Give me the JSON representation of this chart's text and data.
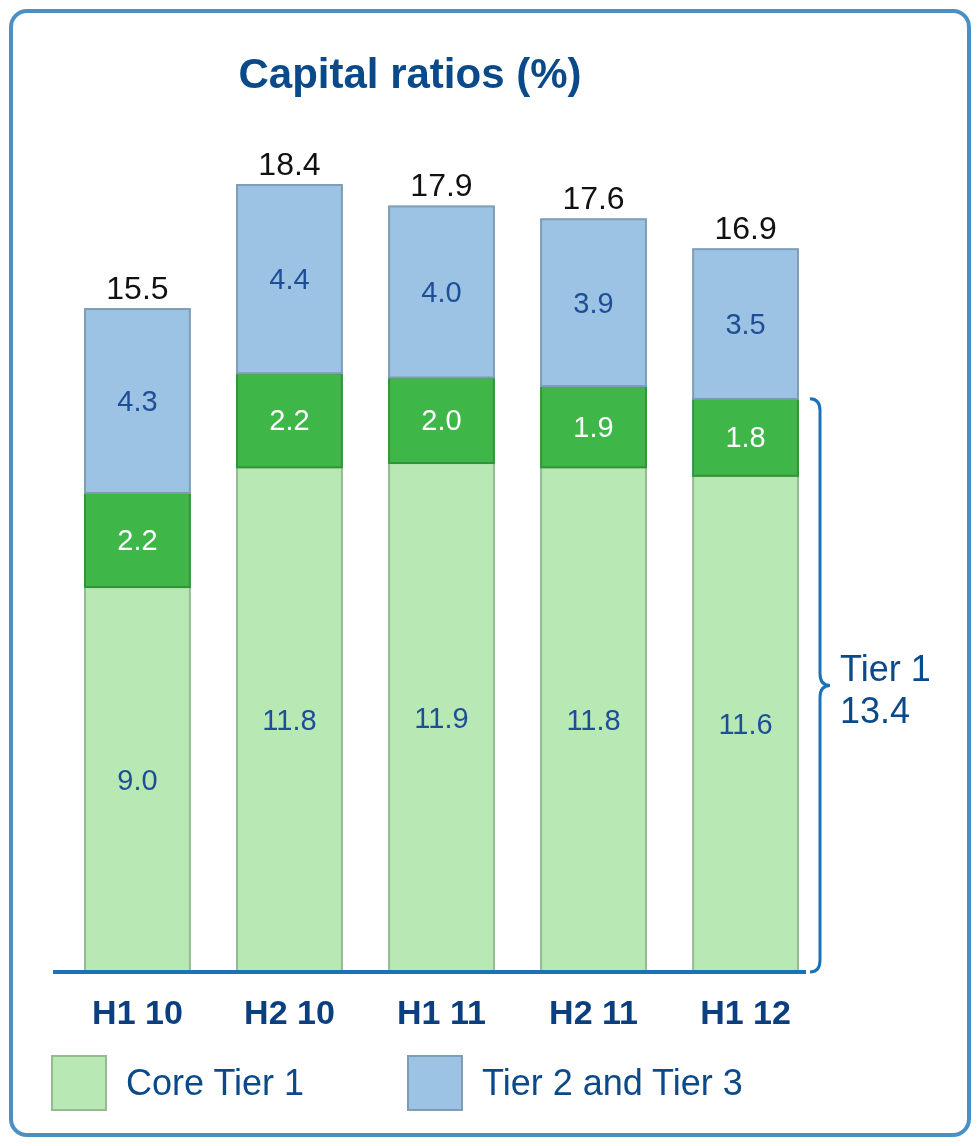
{
  "chart_data": {
    "type": "bar",
    "title": "Capital ratios (%)",
    "categories": [
      "H1 10",
      "H2 10",
      "H1 11",
      "H2 11",
      "H1 12"
    ],
    "stacked": true,
    "legend": "bottom",
    "series": [
      {
        "name": "Core Tier 1",
        "color": "#b8e8b4",
        "values": [
          9.0,
          11.8,
          11.9,
          11.8,
          11.6
        ],
        "value_labels": [
          "9.0",
          "11.8",
          "11.9",
          "11.8",
          "11.6"
        ]
      },
      {
        "color": "#3fb648",
        "values": [
          2.2,
          2.2,
          2.0,
          1.9,
          1.8
        ],
        "value_labels": [
          "2.2",
          "2.2",
          "2.0",
          "1.9",
          "1.8"
        ]
      },
      {
        "name": "Tier 2 and Tier 3",
        "color": "#9cc3e3",
        "values": [
          4.3,
          4.4,
          4.0,
          3.9,
          3.5
        ],
        "value_labels": [
          "4.3",
          "4.4",
          "4.0",
          "3.9",
          "3.5"
        ]
      }
    ],
    "totals": [
      "15.5",
      "18.4",
      "17.9",
      "17.6",
      "16.9"
    ],
    "annotations": [
      "Tier 1\n13.4"
    ]
  }
}
